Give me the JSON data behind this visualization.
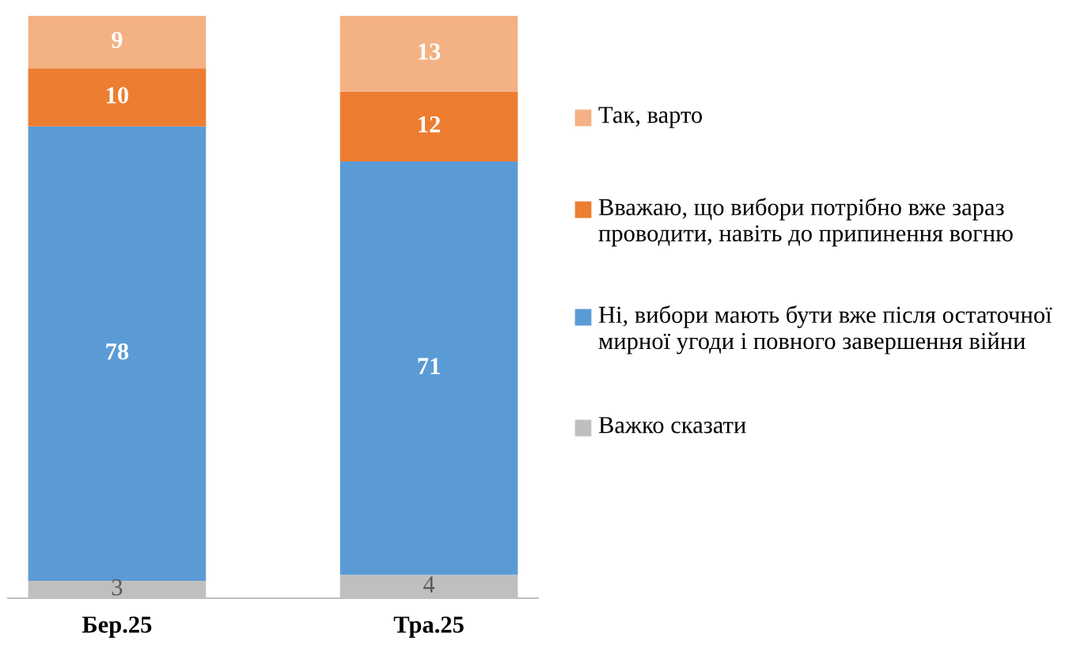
{
  "chart_data": {
    "type": "bar",
    "stacked": true,
    "data_labels": true,
    "legend": "right",
    "categories": [
      "Бер.25",
      "Тра.25"
    ],
    "series": [
      {
        "name": "Важко сказати",
        "color": "#bfbfbf",
        "values": [
          3,
          4
        ]
      },
      {
        "name": "Ні, вибори мають бути вже після остаточної мирної угоди і повного завершення війни",
        "color": "#5b9bd5",
        "values": [
          78,
          71
        ]
      },
      {
        "name": "Вважаю, що вибори потрібно вже зараз проводити, навіть до припинення вогню",
        "color": "#ed7d31",
        "values": [
          10,
          12
        ]
      },
      {
        "name": "Так, варто",
        "color": "#f4b183",
        "values": [
          9,
          13
        ]
      }
    ]
  }
}
